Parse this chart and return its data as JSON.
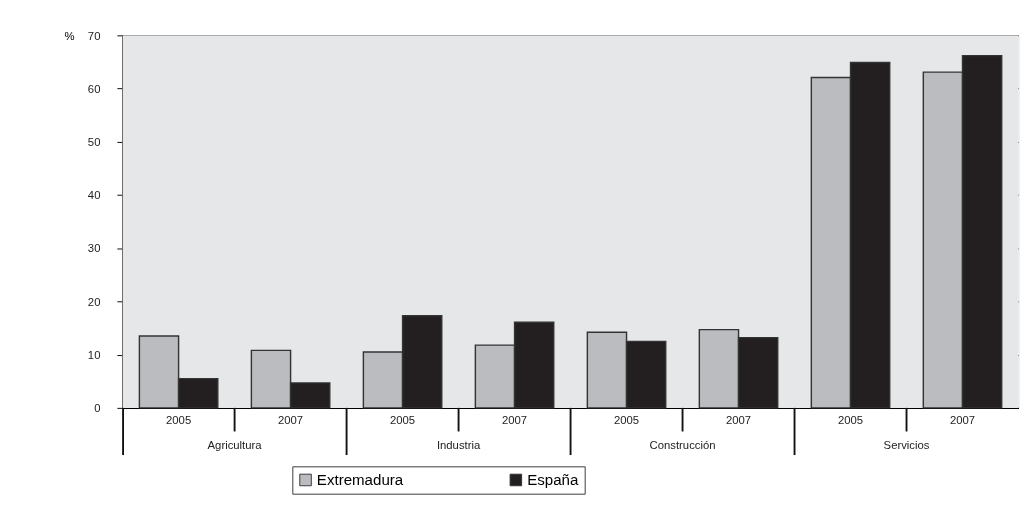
{
  "chart_data": {
    "type": "bar",
    "ylabel": "%",
    "categories": [
      "2005",
      "2007",
      "2005",
      "2007",
      "2005",
      "2007",
      "2005",
      "2007"
    ],
    "annotations": [
      "Agricultura",
      "Industria",
      "Construcción",
      "Servicios"
    ],
    "series": [
      {
        "name": "Extremadura",
        "color": "#bbbcc0",
        "values": [
          13.5,
          10.8,
          10.5,
          11.8,
          14.2,
          14.7,
          62.1,
          63.1
        ]
      },
      {
        "name": "España",
        "color": "#231f20",
        "values": [
          5.5,
          4.7,
          17.3,
          16.1,
          12.5,
          13.2,
          64.9,
          66.2
        ]
      }
    ],
    "ylim": [
      0,
      70
    ],
    "yticks": [
      0,
      10,
      20,
      30,
      40,
      50,
      60,
      70
    ],
    "grid": "y",
    "legend": "bottom"
  }
}
